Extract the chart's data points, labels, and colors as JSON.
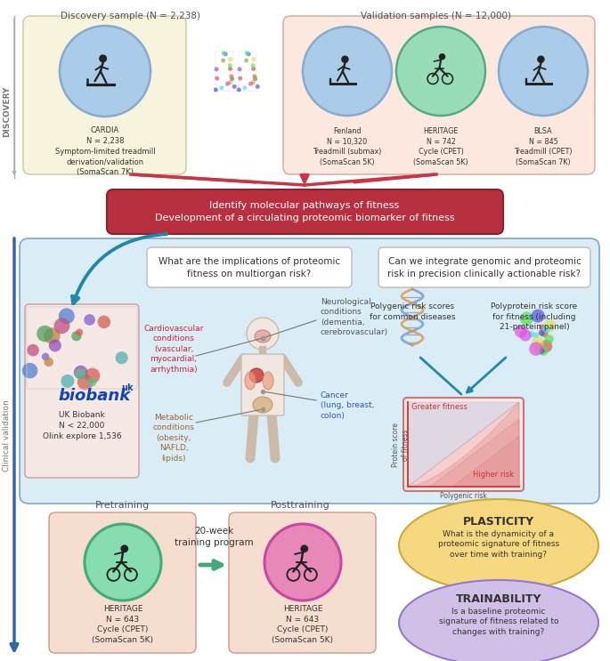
{
  "bg_color": "#ffffff",
  "discovery_label": "Discovery sample (N = 2,238)",
  "validation_label": "Validation samples (N = 12,000)",
  "cardia_text": "CARDIA\nN = 2,238\nSymptom-limited treadmill\nderivation/validation\n(SomaScan 7K)",
  "fenland_text": "Fenland\nN = 10,320\nTreadmill (submax)\n(SomaScan 5K)",
  "heritage_val_text": "HERITAGE\nN = 742\nCycle (CPET)\n(SomaScan 5K)",
  "blsa_text": "BLSA\nN = 845\nTreadmill (CPET)\n(SomaScan 7K)",
  "red_box_line1": "Identify molecular pathways of fitness",
  "red_box_line2": "Development of a circulating proteomic biomarker of fitness",
  "biobank_name": "biobank",
  "biobank_uk_super": "uk",
  "biobank_label": "UK Biobank",
  "biobank_sub": "N < 22,000\nOlink explore 1,536",
  "question1": "What are the implications of proteomic\nfitness on multiorgan risk?",
  "question2": "Can we integrate genomic and proteomic\nrisk in precision clinically actionable risk?",
  "cardio_text": "Cardiovascular\nconditions\n(vascular,\nmyocardial,\narrhythmia)",
  "neuro_text": "Neurological\nconditions\n(dementia,\ncerebrovascular)",
  "cancer_text": "Cancer\n(lung, breast,\ncolon)",
  "metabolic_text": "Metabolic\nconditions\n(obesity,\nNAFLD,\nlipids)",
  "polygenic_text": "Polygenic risk scores\nfor common diseases",
  "polyprotein_text": "Polyprotein risk score\nfor fitness (including\n21-protein panel)",
  "greater_fitness": "Greater fitness",
  "protein_score": "Protein score\nof fitness",
  "polygenic_risk_lbl": "Polygenic risk",
  "higher_risk": "Higher risk",
  "pretraining_label": "Pretraining",
  "posttraining_label": "Posttraining",
  "arrow_label": "20-week\ntraining program",
  "heritage_pre": "HERITAGE\nN = 643\nCycle (CPET)\n(SomaScan 5K)",
  "heritage_post": "HERITAGE\nN = 643\nCycle (CPET)\n(SomaScan 5K)",
  "plasticity_title": "PLASTICITY",
  "plasticity_text": "What is the dynamicity of a\nproteomic signature of fitness\nover time with training?",
  "trainability_title": "TRAINABILITY",
  "trainability_text": "Is a baseline proteomic\nsignature of fitness related to\nchanges with training?",
  "disc_side": "DISCOVERY",
  "clin_side": "Clinical validation",
  "bg": "#ffffff",
  "discovery_box_fc": "#f8f3dc",
  "validation_box_fc": "#fce8df",
  "cardia_circ_fc": "#aacce8",
  "fenland_circ_fc": "#aacce8",
  "heritage_v_circ_fc": "#98ddb8",
  "blsa_circ_fc": "#aacce8",
  "circ_ec": "#88aacc",
  "heritage_v_circ_ec": "#55aa88",
  "red_box_fc": "#b83040",
  "clinical_box_fc": "#daedf6",
  "clinical_box_ec": "#88aacc",
  "biobank_box_fc": "#f5e8e5",
  "biobank_box_ec": "#cc9999",
  "q_box_fc": "#ffffff",
  "q_box_ec": "#aaaaaa",
  "risk_box_fc": "#fce8e5",
  "risk_box_ec": "#cc7777",
  "pre_box_fc": "#f5ddd0",
  "post_box_fc": "#f5ddd0",
  "pre_box_ec": "#cc9988",
  "pre_circ_fc": "#88ddb0",
  "pre_circ_ec": "#44aa77",
  "post_circ_fc": "#e888b8",
  "post_circ_ec": "#cc44aa",
  "plasticity_fc": "#f5d880",
  "plasticity_ec": "#ccaa33",
  "trainability_fc": "#d0c0e8",
  "trainability_ec": "#9977cc",
  "green_arrow_fc": "#44aa77",
  "blue_arrow_c": "#3366aa",
  "teal_arrow_c": "#2288aa",
  "red_arrow_c": "#cc3344",
  "gray_line_c": "#aaaaaa",
  "cardio_text_c": "#cc2233",
  "metabolic_text_c": "#996633",
  "cancer_text_c": "#3355aa",
  "neuro_text_c": "#555555",
  "body_text_c": "#333333",
  "biobank_blue": "#1144bb"
}
